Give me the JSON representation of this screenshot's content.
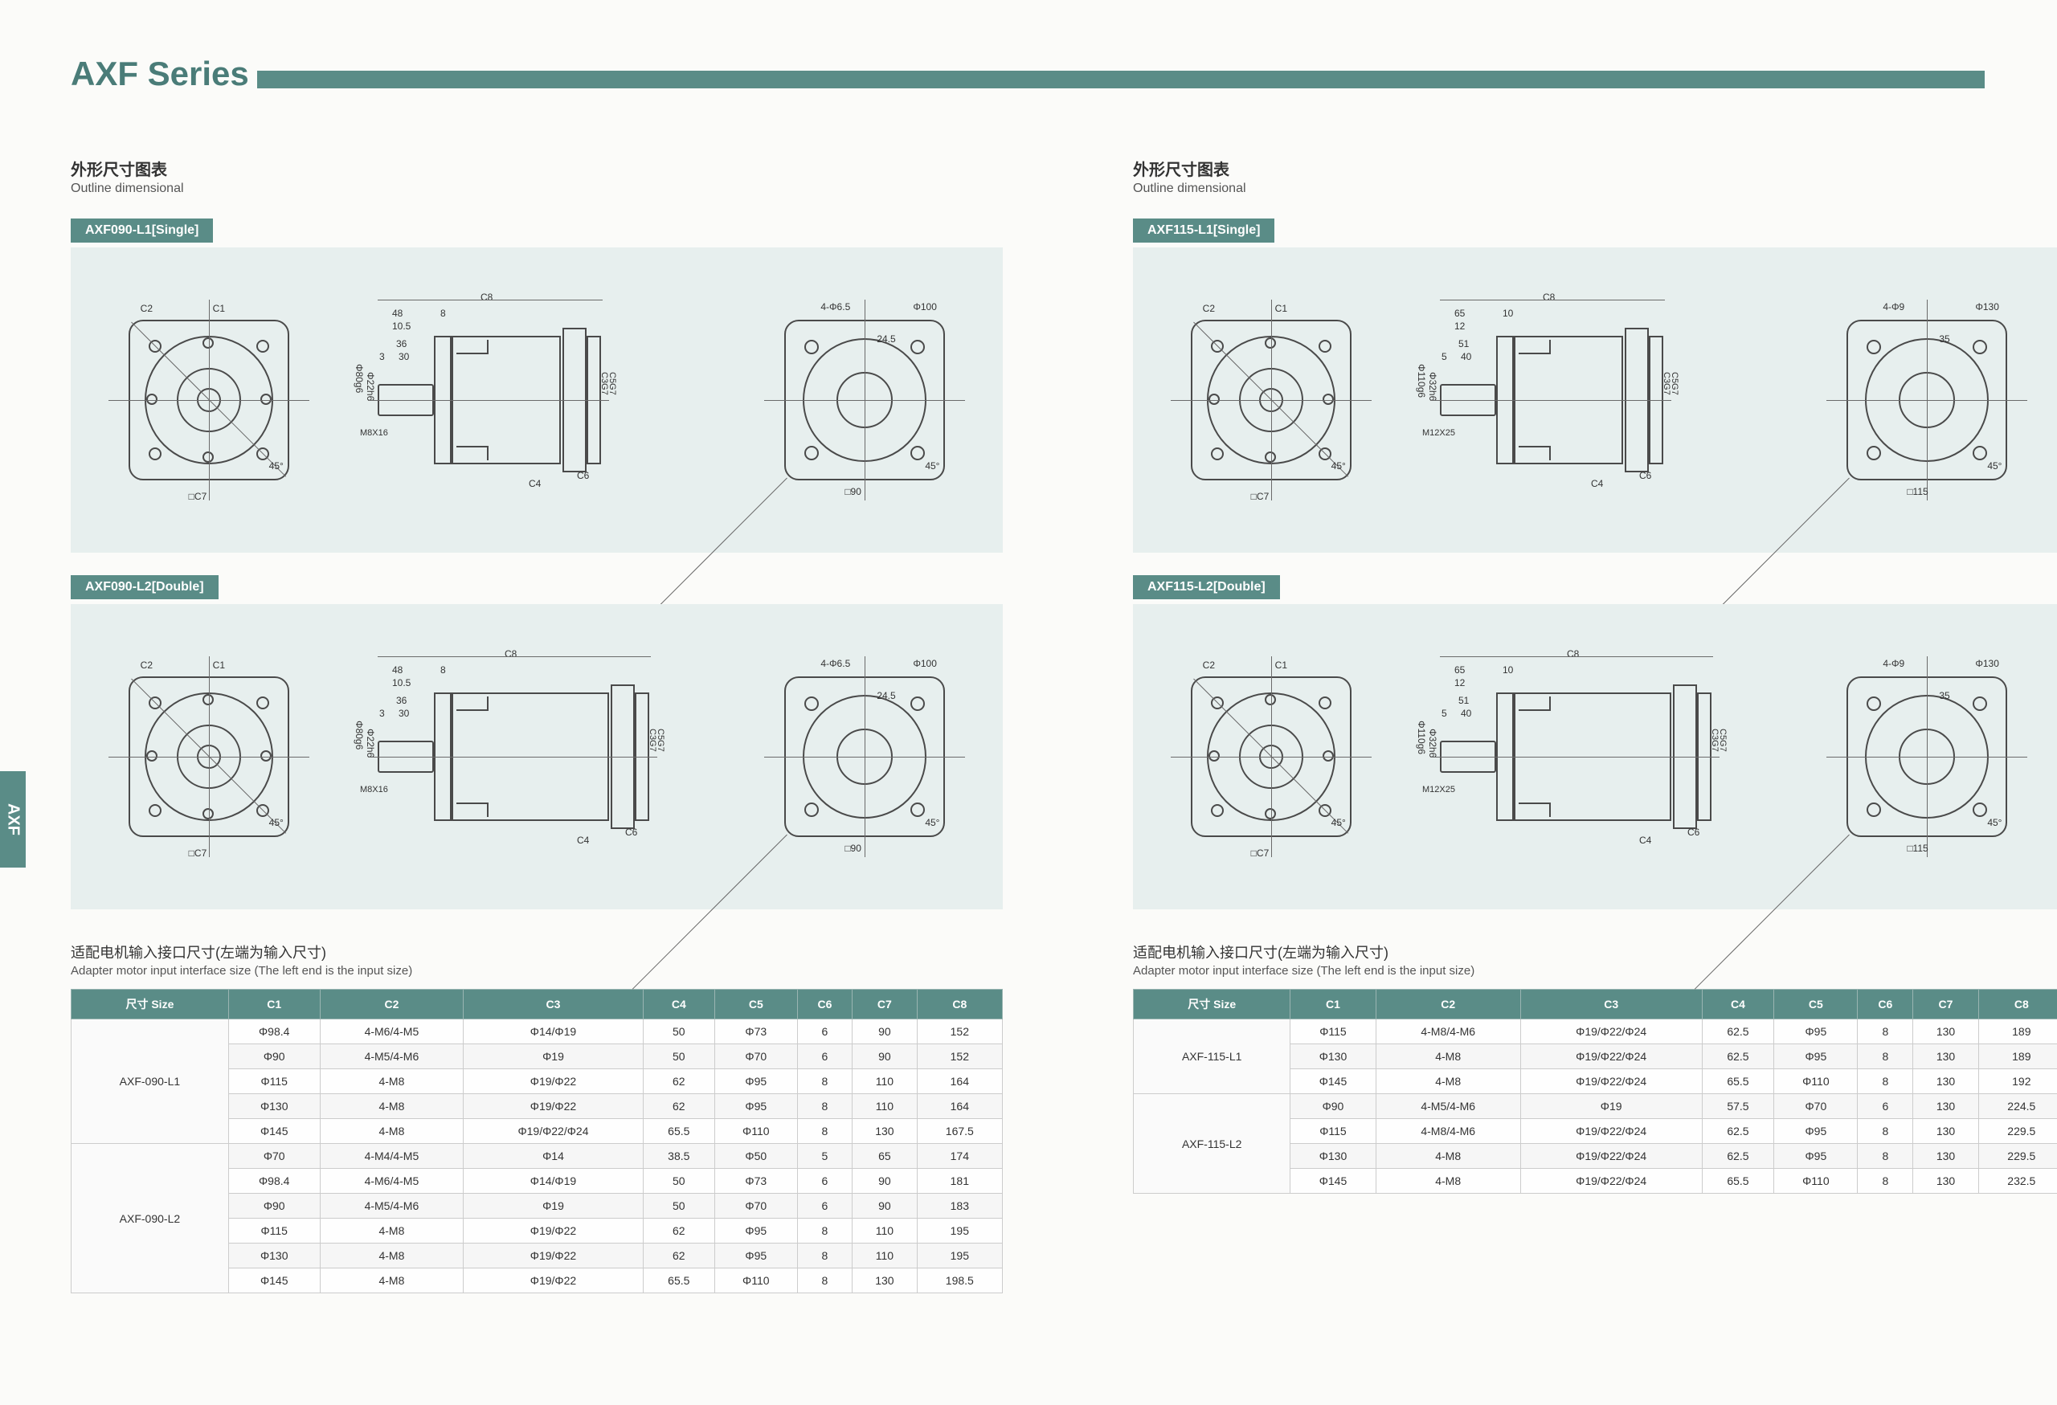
{
  "page_title": "AXF Series",
  "side_tab": "AXF",
  "heading_cn": "外形尺寸图表",
  "heading_en": "Outline dimensional",
  "table_heading_cn": "适配电机输入接口尺寸(左端为输入尺寸)",
  "table_heading_en": "Adapter motor input interface size (The left end is the input size)",
  "colors": {
    "brand": "#5a8c87",
    "drawing_bg": "#e7efee",
    "line": "#4a4a4a"
  },
  "left": {
    "models": [
      {
        "label": "AXF090-L1[Single]"
      },
      {
        "label": "AXF090-L2[Double]"
      }
    ],
    "drawing_dims": {
      "front": {
        "C1": "C1",
        "C2": "C2",
        "C7": "□C7",
        "angle": "45°",
        "shaft_dia": "Φ80g6",
        "shaft2": "Φ22h6",
        "thread": "M8X16"
      },
      "side": {
        "C8": "C8",
        "d48": "48",
        "d8": "8",
        "d10_5": "10.5",
        "d36": "36",
        "d3": "3",
        "d30": "30",
        "C4": "C4",
        "C6": "C6",
        "C3_label": "C3G7",
        "C5_label": "C5G7"
      },
      "back": {
        "hole": "4-Φ6.5",
        "outer": "Φ100",
        "rad": "24.5",
        "angle": "45°",
        "sq": "□90"
      }
    },
    "table": {
      "columns": [
        "尺寸 Size",
        "C1",
        "C2",
        "C3",
        "C4",
        "C5",
        "C6",
        "C7",
        "C8"
      ],
      "groups": [
        {
          "name": "AXF-090-L1",
          "rows": [
            [
              "Φ98.4",
              "4-M6/4-M5",
              "Φ14/Φ19",
              "50",
              "Φ73",
              "6",
              "90",
              "152"
            ],
            [
              "Φ90",
              "4-M5/4-M6",
              "Φ19",
              "50",
              "Φ70",
              "6",
              "90",
              "152"
            ],
            [
              "Φ115",
              "4-M8",
              "Φ19/Φ22",
              "62",
              "Φ95",
              "8",
              "110",
              "164"
            ],
            [
              "Φ130",
              "4-M8",
              "Φ19/Φ22",
              "62",
              "Φ95",
              "8",
              "110",
              "164"
            ],
            [
              "Φ145",
              "4-M8",
              "Φ19/Φ22/Φ24",
              "65.5",
              "Φ110",
              "8",
              "130",
              "167.5"
            ]
          ]
        },
        {
          "name": "AXF-090-L2",
          "rows": [
            [
              "Φ70",
              "4-M4/4-M5",
              "Φ14",
              "38.5",
              "Φ50",
              "5",
              "65",
              "174"
            ],
            [
              "Φ98.4",
              "4-M6/4-M5",
              "Φ14/Φ19",
              "50",
              "Φ73",
              "6",
              "90",
              "181"
            ],
            [
              "Φ90",
              "4-M5/4-M6",
              "Φ19",
              "50",
              "Φ70",
              "6",
              "90",
              "183"
            ],
            [
              "Φ115",
              "4-M8",
              "Φ19/Φ22",
              "62",
              "Φ95",
              "8",
              "110",
              "195"
            ],
            [
              "Φ130",
              "4-M8",
              "Φ19/Φ22",
              "62",
              "Φ95",
              "8",
              "110",
              "195"
            ],
            [
              "Φ145",
              "4-M8",
              "Φ19/Φ22",
              "65.5",
              "Φ110",
              "8",
              "130",
              "198.5"
            ]
          ]
        }
      ]
    }
  },
  "right": {
    "models": [
      {
        "label": "AXF115-L1[Single]"
      },
      {
        "label": "AXF115-L2[Double]"
      }
    ],
    "drawing_dims": {
      "front": {
        "C1": "C1",
        "C2": "C2",
        "C7": "□C7",
        "angle": "45°",
        "shaft_dia": "Φ110g6",
        "shaft2": "Φ32h6",
        "thread": "M12X25"
      },
      "side": {
        "C8": "C8",
        "d65": "65",
        "d10": "10",
        "d12": "12",
        "d51": "51",
        "d5": "5",
        "d40": "40",
        "C4": "C4",
        "C6": "C6",
        "C3_label": "C3G7",
        "C5_label": "C5G7"
      },
      "back": {
        "hole": "4-Φ9",
        "outer": "Φ130",
        "rad": "35",
        "angle": "45°",
        "sq": "□115"
      }
    },
    "table": {
      "columns": [
        "尺寸 Size",
        "C1",
        "C2",
        "C3",
        "C4",
        "C5",
        "C6",
        "C7",
        "C8"
      ],
      "groups": [
        {
          "name": "AXF-115-L1",
          "rows": [
            [
              "Φ115",
              "4-M8/4-M6",
              "Φ19/Φ22/Φ24",
              "62.5",
              "Φ95",
              "8",
              "130",
              "189"
            ],
            [
              "Φ130",
              "4-M8",
              "Φ19/Φ22/Φ24",
              "62.5",
              "Φ95",
              "8",
              "130",
              "189"
            ],
            [
              "Φ145",
              "4-M8",
              "Φ19/Φ22/Φ24",
              "65.5",
              "Φ110",
              "8",
              "130",
              "192"
            ]
          ]
        },
        {
          "name": "AXF-115-L2",
          "rows": [
            [
              "Φ90",
              "4-M5/4-M6",
              "Φ19",
              "57.5",
              "Φ70",
              "6",
              "130",
              "224.5"
            ],
            [
              "Φ115",
              "4-M8/4-M6",
              "Φ19/Φ22/Φ24",
              "62.5",
              "Φ95",
              "8",
              "130",
              "229.5"
            ],
            [
              "Φ130",
              "4-M8",
              "Φ19/Φ22/Φ24",
              "62.5",
              "Φ95",
              "8",
              "130",
              "229.5"
            ],
            [
              "Φ145",
              "4-M8",
              "Φ19/Φ22/Φ24",
              "65.5",
              "Φ110",
              "8",
              "130",
              "232.5"
            ]
          ]
        }
      ]
    }
  }
}
